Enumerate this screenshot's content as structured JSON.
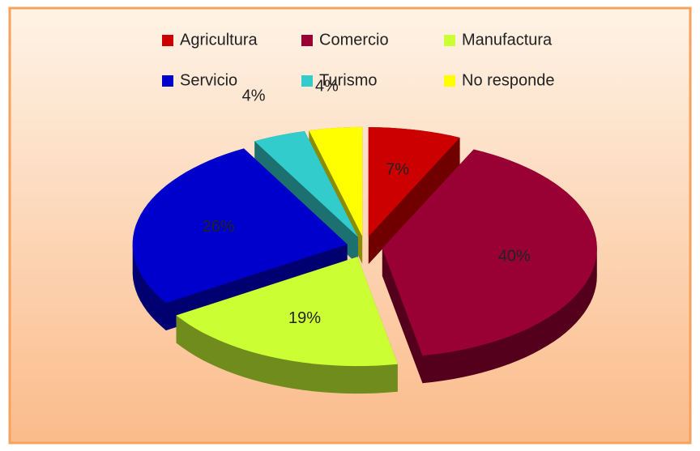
{
  "chart_data": {
    "type": "pie",
    "categories": [
      "Agricultura",
      "Comercio",
      "Manufactura",
      "Servicio",
      "Turismo",
      "No responde"
    ],
    "values": [
      7,
      40,
      19,
      26,
      4,
      4
    ],
    "value_labels": [
      "7%",
      "40%",
      "19%",
      "26%",
      "4%",
      "4%"
    ],
    "colors": [
      "#cc0000",
      "#990033",
      "#ccff33",
      "#0000cc",
      "#33cccc",
      "#ffff00"
    ],
    "legend": "top"
  }
}
